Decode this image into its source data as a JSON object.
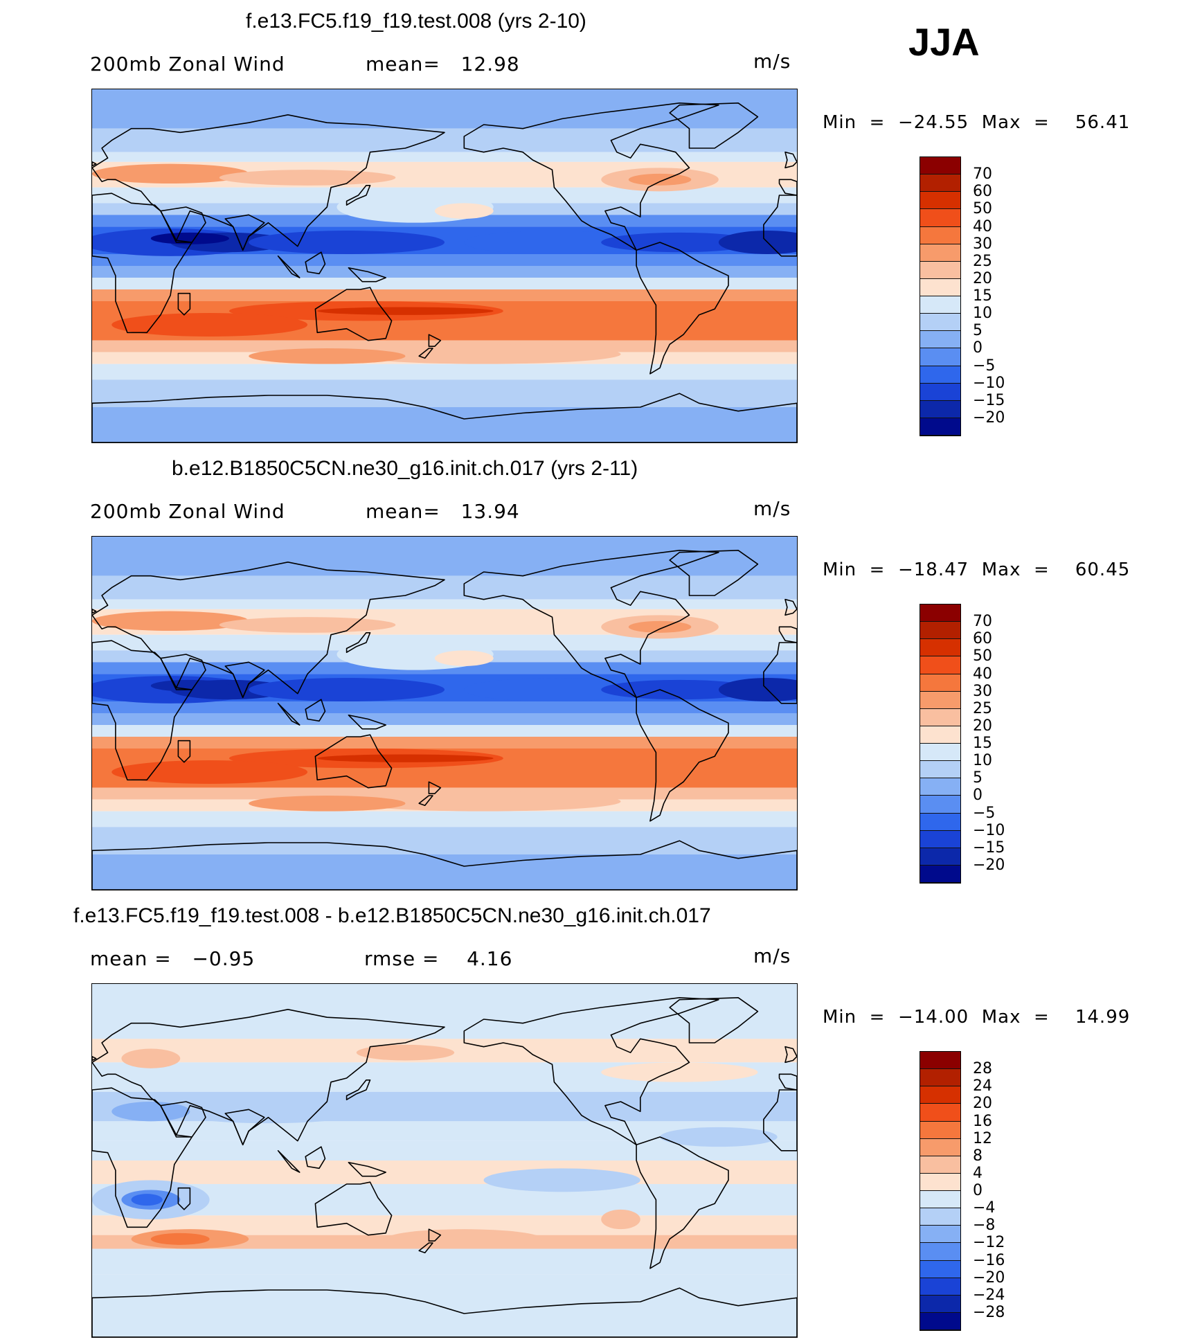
{
  "season": "JJA",
  "units": "m/s",
  "land_color": "#000000",
  "panels": [
    {
      "title": "f.e13.FC5.f19_f19.test.008 (yrs 2-10)",
      "variable": "200mb Zonal Wind",
      "stat1": "mean=   12.98",
      "stat2": "",
      "units": "m/s",
      "minmax": "Min  =  −24.55  Max  =    56.41",
      "colorbar": {
        "labels": [
          "70",
          "60",
          "50",
          "40",
          "30",
          "25",
          "20",
          "15",
          "10",
          "5",
          "0",
          "−5",
          "−10",
          "−15",
          "−20"
        ],
        "colors": [
          "#8b0000",
          "#b22000",
          "#d63000",
          "#f04f1a",
          "#f5773d",
          "#f79b6b",
          "#f9bfa0",
          "#fde2cf",
          "#d6e8f8",
          "#b4d0f6",
          "#86b0f4",
          "#5a8ef2",
          "#2f67ec",
          "#1a43d6",
          "#0c28aa",
          "#000a8c"
        ]
      },
      "field": "base"
    },
    {
      "title": "b.e12.B1850C5CN.ne30_g16.init.ch.017 (yrs 2-11)",
      "variable": "200mb Zonal Wind",
      "stat1": "mean=   13.94",
      "stat2": "",
      "units": "m/s",
      "minmax": "Min  =  −18.47  Max  =    60.45",
      "colorbar": {
        "labels": [
          "70",
          "60",
          "50",
          "40",
          "30",
          "25",
          "20",
          "15",
          "10",
          "5",
          "0",
          "−5",
          "−10",
          "−15",
          "−20"
        ],
        "colors": [
          "#8b0000",
          "#b22000",
          "#d63000",
          "#f04f1a",
          "#f5773d",
          "#f79b6b",
          "#f9bfa0",
          "#fde2cf",
          "#d6e8f8",
          "#b4d0f6",
          "#86b0f4",
          "#5a8ef2",
          "#2f67ec",
          "#1a43d6",
          "#0c28aa",
          "#000a8c"
        ]
      },
      "field": "base2"
    },
    {
      "title": "f.e13.FC5.f19_f19.test.008 - b.e12.B1850C5CN.ne30_g16.init.ch.017",
      "variable": "mean =   −0.95",
      "stat1": "rmse =    4.16",
      "stat2": "",
      "units": "m/s",
      "minmax": "Min  =  −14.00  Max  =    14.99",
      "colorbar": {
        "labels": [
          "28",
          "24",
          "20",
          "16",
          "12",
          "8",
          "4",
          "0",
          "−4",
          "−8",
          "−12",
          "−16",
          "−20",
          "−24",
          "−28"
        ],
        "colors": [
          "#8b0000",
          "#b22000",
          "#d63000",
          "#f04f1a",
          "#f5773d",
          "#f79b6b",
          "#f9bfa0",
          "#fde2cf",
          "#d6e8f8",
          "#b4d0f6",
          "#86b0f4",
          "#5a8ef2",
          "#2f67ec",
          "#1a43d6",
          "#0c28aa",
          "#000a8c"
        ]
      },
      "field": "diff"
    }
  ]
}
